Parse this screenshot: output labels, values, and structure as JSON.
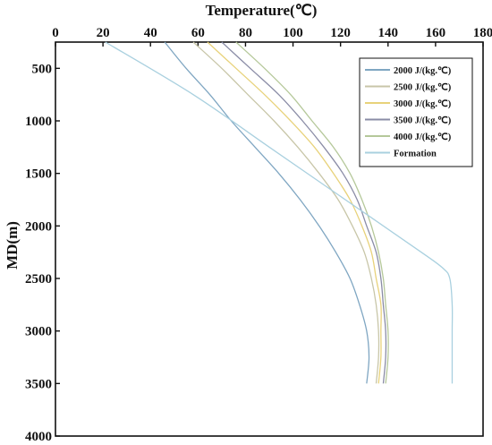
{
  "chart_data": {
    "type": "line",
    "title": "",
    "xlabel": "Temperature(℃)",
    "ylabel": "MD(m)",
    "xlim": [
      0,
      180
    ],
    "ylim": [
      4000,
      250
    ],
    "x_ticks": [
      "0",
      "20",
      "40",
      "60",
      "80",
      "100",
      "120",
      "140",
      "160",
      "180"
    ],
    "y_ticks": [
      "500",
      "1000",
      "1500",
      "2000",
      "2500",
      "3000",
      "3500",
      "4000"
    ],
    "x_axis_position": "top",
    "y_axis_inverted": true,
    "grid": false,
    "legend_position": "top-right",
    "series": [
      {
        "name": "2000 J/(kg.℃)",
        "color": "#7fa6c2",
        "points": [
          [
            46,
            250
          ],
          [
            55,
            500
          ],
          [
            65,
            750
          ],
          [
            74,
            1000
          ],
          [
            84,
            1250
          ],
          [
            94,
            1500
          ],
          [
            103,
            1750
          ],
          [
            111,
            2000
          ],
          [
            118,
            2250
          ],
          [
            124,
            2500
          ],
          [
            128,
            2750
          ],
          [
            131,
            3000
          ],
          [
            132,
            3250
          ],
          [
            131,
            3500
          ]
        ]
      },
      {
        "name": "2500 J/(kg.℃)",
        "color": "#c8c6a8",
        "points": [
          [
            58,
            250
          ],
          [
            70,
            500
          ],
          [
            81,
            750
          ],
          [
            92,
            1000
          ],
          [
            102,
            1250
          ],
          [
            111,
            1500
          ],
          [
            119,
            1750
          ],
          [
            125,
            2000
          ],
          [
            130,
            2250
          ],
          [
            133,
            2500
          ],
          [
            135,
            2750
          ],
          [
            136,
            3000
          ],
          [
            136,
            3250
          ],
          [
            135,
            3500
          ]
        ]
      },
      {
        "name": "3000 J/(kg.℃)",
        "color": "#e8d27a",
        "points": [
          [
            64,
            250
          ],
          [
            76,
            500
          ],
          [
            88,
            750
          ],
          [
            99,
            1000
          ],
          [
            109,
            1250
          ],
          [
            117,
            1500
          ],
          [
            124,
            1750
          ],
          [
            129,
            2000
          ],
          [
            133,
            2250
          ],
          [
            135,
            2500
          ],
          [
            137,
            2750
          ],
          [
            137,
            3000
          ],
          [
            137,
            3250
          ],
          [
            136,
            3500
          ]
        ]
      },
      {
        "name": "3500 J/(kg.℃)",
        "color": "#8a8ca6",
        "points": [
          [
            70,
            250
          ],
          [
            82,
            500
          ],
          [
            94,
            750
          ],
          [
            104,
            1000
          ],
          [
            113,
            1250
          ],
          [
            121,
            1500
          ],
          [
            127,
            1750
          ],
          [
            131,
            2000
          ],
          [
            135,
            2250
          ],
          [
            137,
            2500
          ],
          [
            138,
            2750
          ],
          [
            139,
            3000
          ],
          [
            139,
            3250
          ],
          [
            138,
            3500
          ]
        ]
      },
      {
        "name": "4000 J/(kg.℃)",
        "color": "#b5c89a",
        "points": [
          [
            76,
            250
          ],
          [
            88,
            500
          ],
          [
            99,
            750
          ],
          [
            108,
            1000
          ],
          [
            117,
            1250
          ],
          [
            124,
            1500
          ],
          [
            129,
            1750
          ],
          [
            133,
            2000
          ],
          [
            136,
            2250
          ],
          [
            138,
            2500
          ],
          [
            139,
            2750
          ],
          [
            140,
            3000
          ],
          [
            140,
            3250
          ],
          [
            139,
            3500
          ]
        ]
      },
      {
        "name": "Formation",
        "color": "#a9d0df",
        "points": [
          [
            21,
            250
          ],
          [
            58,
            750
          ],
          [
            90,
            1250
          ],
          [
            122,
            1750
          ],
          [
            154,
            2250
          ],
          [
            163,
            2400
          ],
          [
            166,
            2500
          ],
          [
            167,
            2750
          ],
          [
            167,
            3000
          ],
          [
            167,
            3250
          ],
          [
            167,
            3500
          ]
        ]
      }
    ]
  }
}
